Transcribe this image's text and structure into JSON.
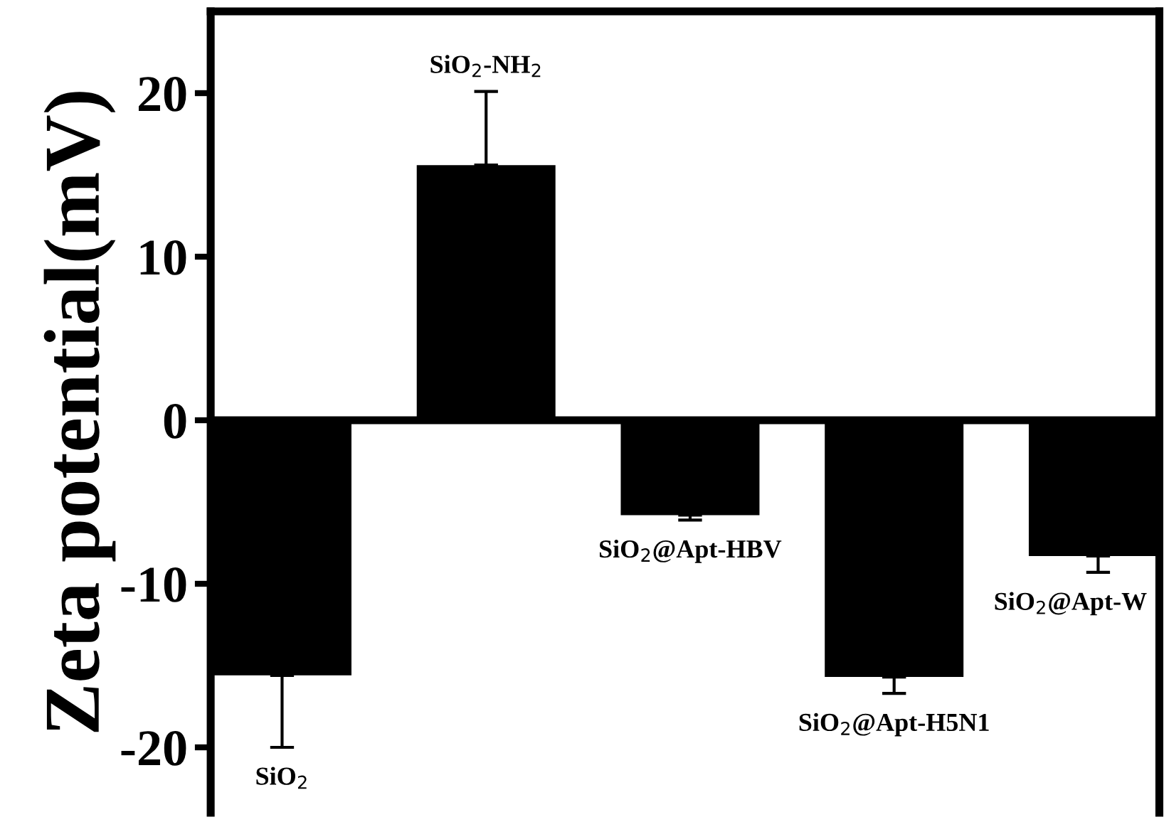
{
  "chart_data": {
    "type": "bar",
    "ylabel": "Zeta potential(mV)",
    "categories": [
      "SiO$_{2}$",
      "SiO$_{2}$-NH$_{2}$",
      "SiO$_{2}$@Apt-HBV",
      "SiO$_{2}$@Apt-H5N1",
      "SiO$_{2}$@Apt-W"
    ],
    "values": [
      -15.6,
      15.6,
      -5.8,
      -15.7,
      -8.3
    ],
    "errors": [
      [
        -20.0,
        -15.6
      ],
      [
        15.6,
        20.1
      ],
      [
        -6.1,
        -5.8
      ],
      [
        -16.7,
        -15.7
      ],
      [
        -9.3,
        -8.3
      ]
    ],
    "ref_lines": [
      {
        "axis": "y",
        "value": 0,
        "color": "#000000"
      }
    ],
    "color": "#000000",
    "ylim": [
      -24,
      25
    ],
    "yticks": [
      -20,
      -10,
      0,
      10,
      20
    ],
    "tick_labels": "y",
    "grid": false,
    "legend": false
  }
}
